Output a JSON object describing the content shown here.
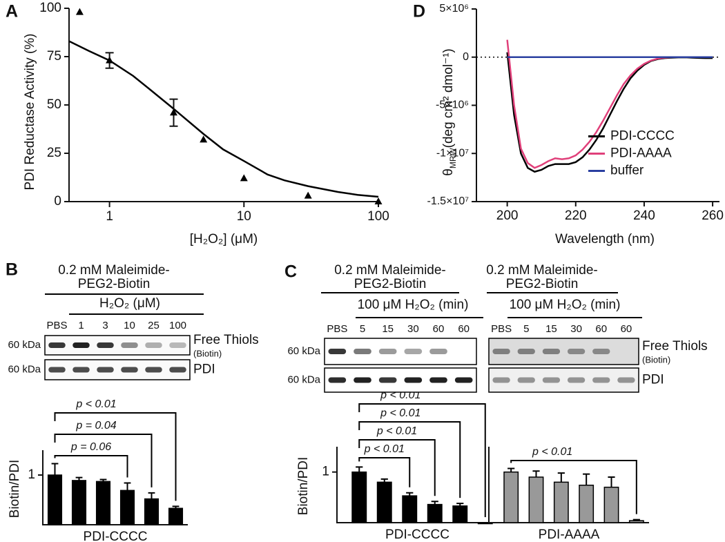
{
  "panel_labels": [
    "A",
    "B",
    "C",
    "D"
  ],
  "chart_data": [
    {
      "type": "scatter",
      "xscale": "log",
      "ylabel": "PDI Reductase Activity (%)",
      "xlabel": "[H₂O₂] (μM)",
      "x": [
        0.6,
        1,
        3,
        5,
        10,
        30,
        100
      ],
      "values": [
        98,
        73,
        46,
        32,
        12,
        3,
        0
      ],
      "errors": [
        null,
        4,
        7,
        null,
        null,
        null,
        null
      ],
      "fit": {
        "x": [
          0.5,
          0.7,
          1,
          1.5,
          2,
          3,
          5,
          7,
          10,
          15,
          20,
          30,
          50,
          70,
          100
        ],
        "y": [
          83,
          78,
          73,
          65,
          58,
          48,
          35,
          27,
          21,
          14,
          11,
          8,
          5,
          3.5,
          2.5
        ]
      },
      "xlim": [
        0.5,
        100
      ],
      "xticks": [
        1,
        10,
        100
      ],
      "ylim": [
        0,
        100
      ],
      "yticks": [
        0,
        25,
        50,
        75,
        100
      ],
      "color": "#000000"
    },
    {
      "type": "bar",
      "ylabel": "Biotin/PDI",
      "xlabel": "PDI-CCCC",
      "categories": [
        "PBS",
        "1",
        "3",
        "10",
        "25",
        "100"
      ],
      "values": [
        1.0,
        0.89,
        0.87,
        0.69,
        0.52,
        0.33
      ],
      "errors": [
        0.23,
        0.06,
        0.04,
        0.15,
        0.12,
        0.04
      ],
      "ylim": [
        0,
        1.5
      ],
      "yticks": [
        1
      ],
      "color": "#000000",
      "comparisons": [
        {
          "from": 0,
          "to": 3,
          "label": "p = 0.06"
        },
        {
          "from": 0,
          "to": 4,
          "label": "p = 0.04"
        },
        {
          "from": 0,
          "to": 5,
          "label": "p < 0.01"
        }
      ]
    },
    {
      "type": "bar",
      "ylabel": "Biotin/PDI",
      "xlabel": "PDI-CCCC",
      "categories": [
        "PBS",
        "5",
        "15",
        "30",
        "60",
        "60"
      ],
      "values": [
        1.0,
        0.8,
        0.53,
        0.36,
        0.33,
        0.0
      ],
      "errors": [
        0.1,
        0.06,
        0.06,
        0.06,
        0.05,
        0.0
      ],
      "ylim": [
        0,
        1.5
      ],
      "yticks": [
        1
      ],
      "color": "#000000",
      "comparisons": [
        {
          "from": 0,
          "to": 2,
          "label": "p < 0.01"
        },
        {
          "from": 0,
          "to": 3,
          "label": "p < 0.01"
        },
        {
          "from": 0,
          "to": 4,
          "label": "p < 0.01"
        },
        {
          "from": 0,
          "to": 5,
          "label": "p < 0.01"
        }
      ]
    },
    {
      "type": "bar",
      "xlabel": "PDI-AAAA",
      "categories": [
        "PBS",
        "5",
        "15",
        "30",
        "60",
        "60"
      ],
      "values": [
        1.0,
        0.9,
        0.8,
        0.74,
        0.7,
        0.04
      ],
      "errors": [
        0.07,
        0.12,
        0.18,
        0.22,
        0.2,
        0.02
      ],
      "ylim": [
        0,
        1.5
      ],
      "color": "#999999",
      "comparisons": [
        {
          "from": 0,
          "to": 5,
          "label": "p < 0.01"
        }
      ]
    },
    {
      "type": "line",
      "xlabel": "Wavelength (nm)",
      "ylabel": [
        "θ",
        "MRW",
        "(deg cm² dmol⁻¹)"
      ],
      "legend": "center right",
      "zero_line": true,
      "x": [
        200,
        202,
        204,
        206,
        208,
        210,
        212,
        214,
        216,
        218,
        220,
        222,
        224,
        226,
        228,
        230,
        232,
        234,
        236,
        238,
        240,
        242,
        244,
        246,
        248,
        250,
        252,
        254,
        256,
        258,
        260
      ],
      "series": [
        {
          "name": "PDI-CCCC",
          "color": "#000000",
          "values": [
            500000,
            -6000000,
            -10000000,
            -11500000,
            -11900000,
            -11700000,
            -11300000,
            -11100000,
            -11100000,
            -11100000,
            -10900000,
            -10400000,
            -9600000,
            -8600000,
            -7400000,
            -6000000,
            -4600000,
            -3300000,
            -2200000,
            -1400000,
            -800000,
            -400000,
            -200000,
            -100000,
            -50000,
            -30000,
            -20000,
            -50000,
            -80000,
            -100000,
            -100000
          ]
        },
        {
          "name": "PDI-AAAA",
          "color": "#e0407a",
          "values": [
            1800000,
            -5000000,
            -9500000,
            -11000000,
            -11500000,
            -11200000,
            -10800000,
            -10500000,
            -10600000,
            -10500000,
            -10200000,
            -9600000,
            -8800000,
            -7800000,
            -6600000,
            -5300000,
            -4000000,
            -2800000,
            -1900000,
            -1200000,
            -700000,
            -350000,
            -150000,
            -50000,
            0,
            0,
            0,
            0,
            0,
            0,
            0
          ]
        },
        {
          "name": "buffer",
          "color": "#2a3fa0",
          "values": [
            0,
            0,
            0,
            0,
            0,
            0,
            0,
            0,
            0,
            0,
            0,
            0,
            0,
            0,
            0,
            0,
            0,
            0,
            0,
            0,
            0,
            0,
            0,
            0,
            0,
            0,
            0,
            0,
            0,
            0,
            0
          ]
        }
      ],
      "xlim": [
        191,
        262
      ],
      "xticks": [
        200,
        220,
        240,
        260
      ],
      "ylim": [
        -15000000,
        5000000
      ],
      "yticks": [
        {
          "value": 5000000,
          "label": "5×10⁶"
        },
        0,
        {
          "value": -5000000,
          "label": "-5×10⁶"
        },
        {
          "value": -10000000,
          "label": "-1×10⁷"
        },
        {
          "value": -15000000,
          "label": "-1.5×10⁷"
        }
      ]
    }
  ],
  "blots": [
    {
      "header": [
        "0.2 mM Maleimide-",
        "PEG2-Biotin"
      ],
      "treatment": "H₂O₂ (μM)",
      "rows": [
        {
          "size": "60 kDa",
          "label": "Free Thiols",
          "sublabel": "(Biotin)"
        },
        {
          "size": "60 kDa",
          "label": "PDI"
        }
      ]
    },
    {
      "header": [
        "0.2 mM Maleimide-",
        "PEG2-Biotin"
      ],
      "treatment": "100 μM H₂O₂ (min)",
      "rows": [
        {
          "size": "60 kDa"
        },
        {
          "size": "60 kDa"
        }
      ]
    },
    {
      "header": [
        "0.2 mM Maleimide-",
        "PEG2-Biotin"
      ],
      "treatment": "100 μM H₂O₂ (min)",
      "rows": [
        {
          "label": "Free Thiols",
          "sublabel": "(Biotin)"
        },
        {
          "label": "PDI"
        }
      ]
    }
  ]
}
